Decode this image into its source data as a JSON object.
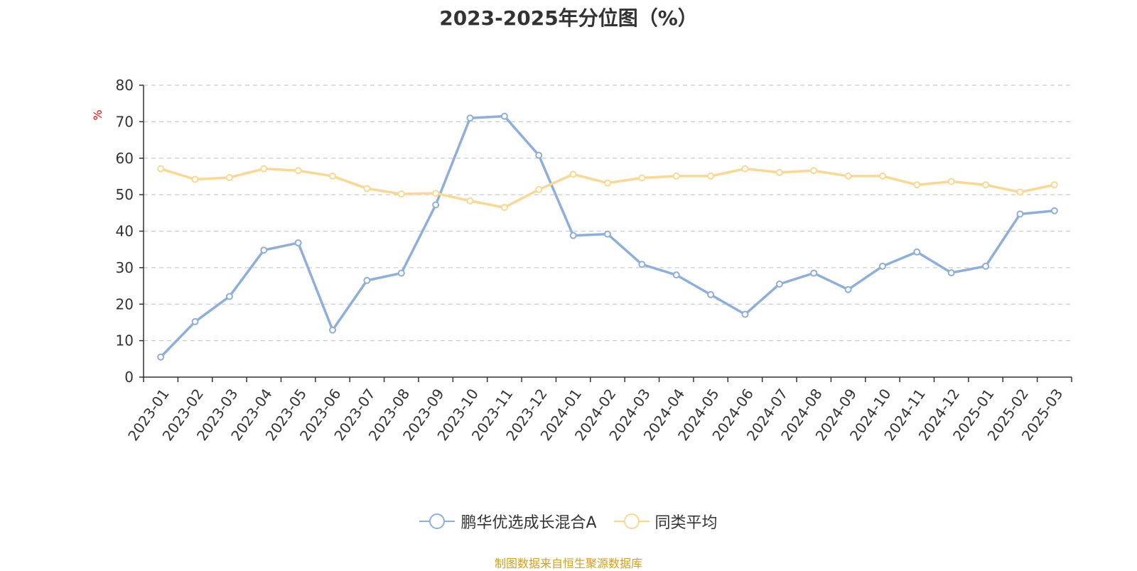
{
  "chart_data": {
    "type": "line",
    "title": "2023-2025年分位图（%）",
    "ylabel": "%",
    "ylim": [
      0,
      80
    ],
    "yticks": [
      0,
      10,
      20,
      30,
      40,
      50,
      60,
      70,
      80
    ],
    "grid": true,
    "legend_position": "bottom",
    "categories": [
      "2023-01",
      "2023-02",
      "2023-03",
      "2023-04",
      "2023-05",
      "2023-06",
      "2023-07",
      "2023-08",
      "2023-09",
      "2023-10",
      "2023-11",
      "2023-12",
      "2024-01",
      "2024-02",
      "2024-03",
      "2024-04",
      "2024-05",
      "2024-06",
      "2024-07",
      "2024-08",
      "2024-09",
      "2024-10",
      "2024-11",
      "2024-12",
      "2025-01",
      "2025-02",
      "2025-03"
    ],
    "series": [
      {
        "name": "鹏华优选成长混合A",
        "color": "#8eaedb",
        "values": [
          5.5,
          15.2,
          22.1,
          34.8,
          36.8,
          12.9,
          26.5,
          28.5,
          47.2,
          71.0,
          71.5,
          60.8,
          38.8,
          39.2,
          30.9,
          28.0,
          22.6,
          17.2,
          25.5,
          28.5,
          24.0,
          30.4,
          34.3,
          28.6,
          30.4,
          44.7,
          45.6
        ]
      },
      {
        "name": "同类平均",
        "color": "#fbd892",
        "values": [
          57.1,
          54.2,
          54.7,
          57.1,
          56.6,
          55.1,
          51.7,
          50.2,
          50.4,
          48.3,
          46.5,
          51.4,
          55.6,
          53.2,
          54.6,
          55.1,
          55.1,
          57.1,
          56.1,
          56.6,
          55.1,
          55.1,
          52.7,
          53.6,
          52.7,
          50.7,
          52.7
        ]
      }
    ]
  },
  "source_note": "制图数据来自恒生聚源数据库"
}
